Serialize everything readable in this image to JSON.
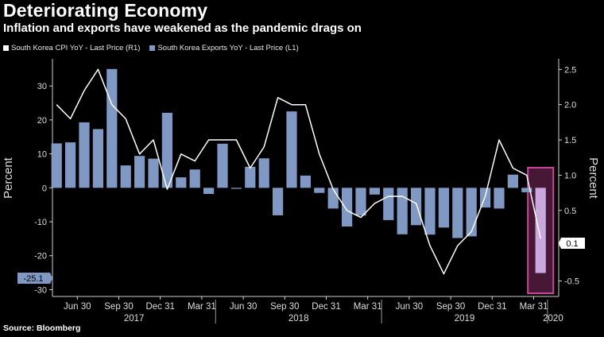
{
  "header": {
    "title": "Deteriorating Economy",
    "subtitle": "Inflation and exports have weakened as the pandemic drags on"
  },
  "legend": {
    "cpi_label": "South Korea CPI YoY - Last Price (R1)",
    "exports_label": "South Korea Exports YoY - Last Price (L1)"
  },
  "footer": {
    "source": "Source: Bloomberg"
  },
  "colors": {
    "bar": "#7f98c4",
    "line": "#ffffff",
    "highlight": "#c8449a",
    "background": "#000000"
  },
  "chart_data": {
    "type": "bar+line",
    "left_axis": {
      "label": "Percent",
      "ylim": [
        -32,
        38
      ],
      "ticks": [
        30,
        20,
        10,
        0,
        -10,
        -20,
        -30
      ],
      "tick_labels": [
        "30",
        "20",
        "10",
        "0",
        "-10",
        "-20",
        "-30"
      ]
    },
    "right_axis": {
      "label": "Percent",
      "ylim": [
        -0.72,
        2.65
      ],
      "ticks": [
        2.5,
        2.0,
        1.5,
        1.0,
        0.5,
        0.0,
        -0.5
      ],
      "tick_labels": [
        "2.5",
        "2.0",
        "1.5",
        "1.0",
        "0.5",
        "0.0",
        "-0.5"
      ]
    },
    "x_tick_labels": [
      "Jun 30",
      "Sep 30",
      "Dec 31",
      "Mar 31",
      "Jun 30",
      "Sep 30",
      "Dec 31",
      "Mar 31",
      "Jun 30",
      "Sep 30",
      "Dec 31",
      "Mar 31"
    ],
    "year_labels": [
      "2017",
      "2018",
      "2019",
      "2020"
    ],
    "series": [
      {
        "name": "South Korea Exports YoY - Last Price (L1)",
        "axis": "left",
        "kind": "bar",
        "values": [
          13.1,
          13.4,
          19.3,
          17.3,
          35.0,
          6.6,
          9.4,
          8.6,
          22.1,
          3.1,
          5.4,
          -1.8,
          13.0,
          -0.3,
          6.2,
          8.7,
          -8.1,
          22.5,
          3.6,
          -1.5,
          -6.1,
          -11.4,
          -8.2,
          -2.0,
          -9.5,
          -13.7,
          -11.0,
          -13.8,
          -11.7,
          -14.8,
          -14.3,
          -5.8,
          -6.1,
          3.9,
          -1.3,
          -25.1
        ]
      },
      {
        "name": "South Korea CPI YoY - Last Price (R1)",
        "axis": "right",
        "kind": "line",
        "values": [
          2.0,
          1.8,
          2.2,
          2.5,
          2.0,
          1.8,
          1.3,
          1.5,
          0.8,
          1.3,
          1.2,
          1.5,
          1.5,
          1.5,
          1.1,
          1.4,
          2.1,
          2.0,
          2.0,
          1.3,
          0.8,
          0.5,
          0.4,
          0.6,
          0.7,
          0.7,
          0.6,
          0.0,
          -0.4,
          0.0,
          0.2,
          0.7,
          1.5,
          1.1,
          1.0,
          0.1
        ]
      }
    ],
    "last_values": {
      "exports": "-25.1",
      "cpi": "0.1"
    }
  }
}
